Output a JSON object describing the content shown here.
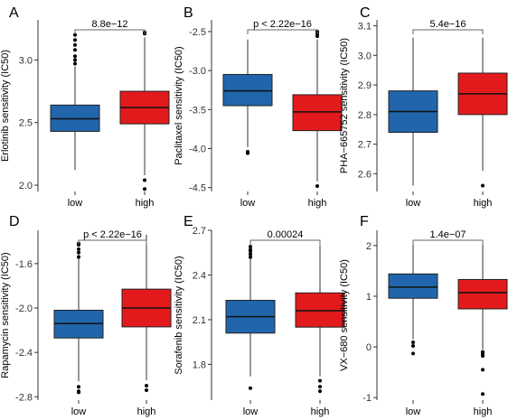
{
  "colors": {
    "low": "#2166ac",
    "high": "#e31a1c",
    "axis": "#333333",
    "median": "#111111"
  },
  "chart_data": [
    {
      "type": "box",
      "panel": "A",
      "ylabel": "Erlotinib sensitivity (IC50)",
      "pvalue": "8.8e−12",
      "categories": [
        "low",
        "high"
      ],
      "ylim": [
        1.95,
        3.32
      ],
      "yticks": [
        2.0,
        2.5,
        3.0
      ],
      "ytick_labels": [
        "2.0",
        "2.5",
        "3.0"
      ],
      "boxes": [
        {
          "group": "low",
          "q1": 2.43,
          "median": 2.53,
          "q3": 2.64,
          "whisker_low": 2.12,
          "whisker_high": 2.95,
          "outliers": [
            2.97,
            3.0,
            3.03,
            3.08,
            3.12,
            3.16,
            3.2
          ]
        },
        {
          "group": "high",
          "q1": 2.49,
          "median": 2.62,
          "q3": 2.75,
          "whisker_low": 2.08,
          "whisker_high": 3.18,
          "outliers": [
            3.21,
            3.22,
            2.04,
            1.97
          ]
        }
      ]
    },
    {
      "type": "box",
      "panel": "B",
      "ylabel": "Paclitaxel sensitivity (IC50)",
      "pvalue": "p < 2.22e−16",
      "categories": [
        "low",
        "high"
      ],
      "ylim": [
        -4.55,
        -2.35
      ],
      "yticks": [
        -4.5,
        -4.0,
        -3.5,
        -3.0,
        -2.5
      ],
      "ytick_labels": [
        "-4.5",
        "-4.0",
        "-3.5",
        "-3.0",
        "-2.5"
      ],
      "boxes": [
        {
          "group": "low",
          "q1": -3.45,
          "median": -3.26,
          "q3": -3.05,
          "whisker_low": -3.98,
          "whisker_high": -2.6,
          "outliers": [
            -4.04,
            -4.06
          ]
        },
        {
          "group": "high",
          "q1": -3.77,
          "median": -3.53,
          "q3": -3.31,
          "whisker_low": -4.42,
          "whisker_high": -2.6,
          "outliers": [
            -2.5,
            -2.53,
            -2.56,
            -4.48
          ]
        }
      ]
    },
    {
      "type": "box",
      "panel": "C",
      "ylabel": "PHA−665752 sensitivity (IC50)",
      "pvalue": "5.4e−16",
      "categories": [
        "low",
        "high"
      ],
      "ylim": [
        2.54,
        3.12
      ],
      "yticks": [
        2.6,
        2.7,
        2.8,
        2.9,
        3.0,
        3.1
      ],
      "ytick_labels": [
        "2.6",
        "2.7",
        "2.8",
        "2.9",
        "3.0",
        "3.1"
      ],
      "boxes": [
        {
          "group": "low",
          "q1": 2.74,
          "median": 2.81,
          "q3": 2.88,
          "whisker_low": 2.56,
          "whisker_high": 3.06,
          "outliers": []
        },
        {
          "group": "high",
          "q1": 2.8,
          "median": 2.87,
          "q3": 2.94,
          "whisker_low": 2.61,
          "whisker_high": 3.06,
          "outliers": [
            2.56
          ]
        }
      ]
    },
    {
      "type": "box",
      "panel": "D",
      "ylabel": "Rapamycin sensitivity (IC50)",
      "pvalue": "p < 2.22e−16",
      "categories": [
        "low",
        "high"
      ],
      "ylim": [
        -2.83,
        -1.3
      ],
      "yticks": [
        -2.8,
        -2.4,
        -2.0,
        -1.6
      ],
      "ytick_labels": [
        "-2.8",
        "-2.4",
        "-2.0",
        "-1.6"
      ],
      "boxes": [
        {
          "group": "low",
          "q1": -2.27,
          "median": -2.14,
          "q3": -2.02,
          "whisker_low": -2.66,
          "whisker_high": -1.52,
          "outliers": [
            -1.42,
            -1.43,
            -1.47,
            -1.5,
            -1.54,
            -2.71,
            -2.75,
            -2.76
          ]
        },
        {
          "group": "high",
          "q1": -2.17,
          "median": -2.0,
          "q3": -1.83,
          "whisker_low": -2.65,
          "whisker_high": -1.34,
          "outliers": [
            -2.7,
            -2.74
          ]
        }
      ]
    },
    {
      "type": "box",
      "panel": "E",
      "ylabel": "Sorafenib sensitivity (IC50)",
      "pvalue": "0.00024",
      "categories": [
        "low",
        "high"
      ],
      "ylim": [
        1.56,
        2.7
      ],
      "yticks": [
        1.8,
        2.1,
        2.4,
        2.7
      ],
      "ytick_labels": [
        "1.8",
        "2.1",
        "2.4",
        "2.7"
      ],
      "boxes": [
        {
          "group": "low",
          "q1": 2.01,
          "median": 2.12,
          "q3": 2.23,
          "whisker_low": 1.72,
          "whisker_high": 2.51,
          "outliers": [
            2.52,
            2.54,
            2.56,
            2.57,
            2.59,
            1.64
          ]
        },
        {
          "group": "high",
          "q1": 2.05,
          "median": 2.16,
          "q3": 2.28,
          "whisker_low": 1.72,
          "whisker_high": 2.6,
          "outliers": [
            1.69,
            1.65,
            1.62
          ]
        }
      ]
    },
    {
      "type": "box",
      "panel": "F",
      "ylabel": "VX−680 sensitivity (IC50)",
      "pvalue": "1.4e−07",
      "categories": [
        "low",
        "high"
      ],
      "ylim": [
        -1.05,
        2.3
      ],
      "yticks": [
        -1,
        0,
        1,
        2
      ],
      "ytick_labels": [
        "-1",
        "0",
        "1",
        "2"
      ],
      "boxes": [
        {
          "group": "low",
          "q1": 0.96,
          "median": 1.18,
          "q3": 1.44,
          "whisker_low": 0.15,
          "whisker_high": 2.05,
          "outliers": [
            0.09,
            0.02,
            -0.13
          ]
        },
        {
          "group": "high",
          "q1": 0.75,
          "median": 1.07,
          "q3": 1.33,
          "whisker_low": -0.05,
          "whisker_high": 2.03,
          "outliers": [
            -0.1,
            -0.14,
            -0.18,
            -0.45,
            -0.93
          ]
        }
      ]
    }
  ]
}
